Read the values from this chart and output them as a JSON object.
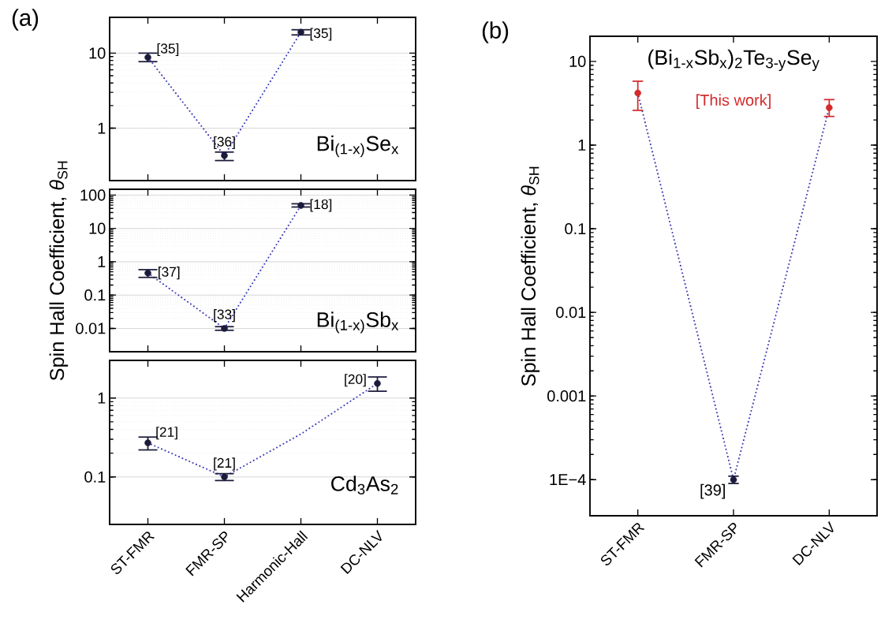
{
  "chart_data": [
    {
      "type": "scatter",
      "title": "Bi$_{(1-x)}$Se$_{x}$",
      "log": true,
      "grid": "y",
      "tick_labels": "y",
      "categories": [
        "ST-FMR",
        "FMR-SP",
        "Harmonic-Hall",
        "DC-NLV"
      ],
      "ylim": [
        0.2,
        30
      ],
      "yticks": [
        1,
        10
      ],
      "series": [
        {
          "type": "line",
          "color": "#3a3ab8",
          "line_style": "dotted",
          "marker": "none",
          "values": [
            8.8,
            0.43,
            19,
            null
          ]
        },
        {
          "color": "#1a1a3a",
          "marker": "circle",
          "values": [
            8.8,
            0.43,
            19,
            null
          ],
          "errors": [
            [
              7.7,
              10
            ],
            [
              0.37,
              0.48
            ],
            [
              17.5,
              20.5
            ],
            null
          ]
        }
      ],
      "annotations": [
        "(a)",
        {
          "text": "[35]",
          "x": "ST-FMR",
          "y": 8.8
        },
        {
          "text": "[36]",
          "x": "FMR-SP",
          "y": 0.43
        },
        {
          "text": "[35]",
          "x": "Harmonic-Hall",
          "y": 19
        }
      ]
    },
    {
      "type": "scatter",
      "title": "Bi$_{(1-x)}$Sb$_{x}$",
      "ylabel": "Spin Hall Coefficient, *θ*$_{SH}$",
      "log": true,
      "grid": "y",
      "tick_labels": "y",
      "categories": [
        "ST-FMR",
        "FMR-SP",
        "Harmonic-Hall",
        "DC-NLV"
      ],
      "ylim": [
        0.002,
        150
      ],
      "yticks": [
        0.01,
        0.1,
        1,
        10,
        100
      ],
      "series": [
        {
          "type": "line",
          "color": "#3a3ab8",
          "line_style": "dotted",
          "marker": "none",
          "values": [
            0.46,
            0.01,
            49,
            null
          ]
        },
        {
          "color": "#1a1a3a",
          "marker": "circle",
          "values": [
            0.46,
            0.01,
            49,
            null
          ],
          "errors": [
            [
              0.34,
              0.58
            ],
            [
              0.0088,
              0.0113
            ],
            [
              44,
              55
            ],
            null
          ]
        }
      ],
      "annotations": [
        {
          "text": "[37]",
          "x": "ST-FMR",
          "y": 0.46
        },
        {
          "text": "[33]",
          "x": "FMR-SP",
          "y": 0.01
        },
        {
          "text": "[18]",
          "x": "Harmonic-Hall",
          "y": 49
        }
      ]
    },
    {
      "type": "scatter",
      "title": "Cd$_{3}$As$_{2}$",
      "log": true,
      "grid": "y",
      "categories": [
        "ST-FMR",
        "FMR-SP",
        "Harmonic-Hall",
        "DC-NLV"
      ],
      "ylim": [
        0.025,
        3
      ],
      "yticks": [
        0.1,
        1
      ],
      "series": [
        {
          "type": "line",
          "color": "#3a3ab8",
          "line_style": "dotted",
          "marker": "none",
          "values": [
            0.27,
            0.1,
            0.35,
            1.53
          ]
        },
        {
          "color": "#1a1a3a",
          "marker": "circle",
          "values": [
            0.27,
            0.1,
            null,
            1.53
          ],
          "errors": [
            [
              0.22,
              0.32
            ],
            [
              0.09,
              0.11
            ],
            null,
            [
              1.22,
              1.85
            ]
          ]
        }
      ],
      "annotations": [
        {
          "text": "[21]",
          "x": "ST-FMR",
          "y": 0.27
        },
        {
          "text": "[21]",
          "x": "FMR-SP",
          "y": 0.1
        },
        {
          "text": "[20]",
          "x": "DC-NLV",
          "y": 1.53
        }
      ]
    },
    {
      "type": "scatter",
      "title": "(Bi$_{1-x}$Sb$_{x}$)$_{2}$Te$_{3-y}$Se$_{y}$",
      "ylabel": "Spin Hall Coefficient, *θ*$_{SH}$",
      "log": true,
      "categories": [
        "ST-FMR",
        "FMR-SP",
        "DC-NLV"
      ],
      "ylim": [
        3.7e-05,
        20
      ],
      "yticks": [
        {
          "value": 0.0001,
          "label": "1E−4"
        },
        0.001,
        0.01,
        0.1,
        1,
        10
      ],
      "series": [
        {
          "type": "line",
          "color": "#3a3ab8",
          "line_style": "dotted",
          "marker": "none",
          "values": [
            4.2,
            0.0001,
            2.8
          ]
        },
        {
          "colors": [
            "#d42a2a",
            "#1a1a3a",
            "#d42a2a"
          ],
          "marker": "circle",
          "values": [
            4.2,
            0.0001,
            2.8
          ],
          "errors": [
            [
              2.6,
              5.8
            ],
            [
              9e-05,
              0.00011
            ],
            [
              2.2,
              3.5
            ]
          ]
        }
      ],
      "annotations": [
        "(b)",
        "[This work]",
        {
          "text": "[39]",
          "x": "FMR-SP",
          "y": 0.0001
        }
      ]
    }
  ]
}
